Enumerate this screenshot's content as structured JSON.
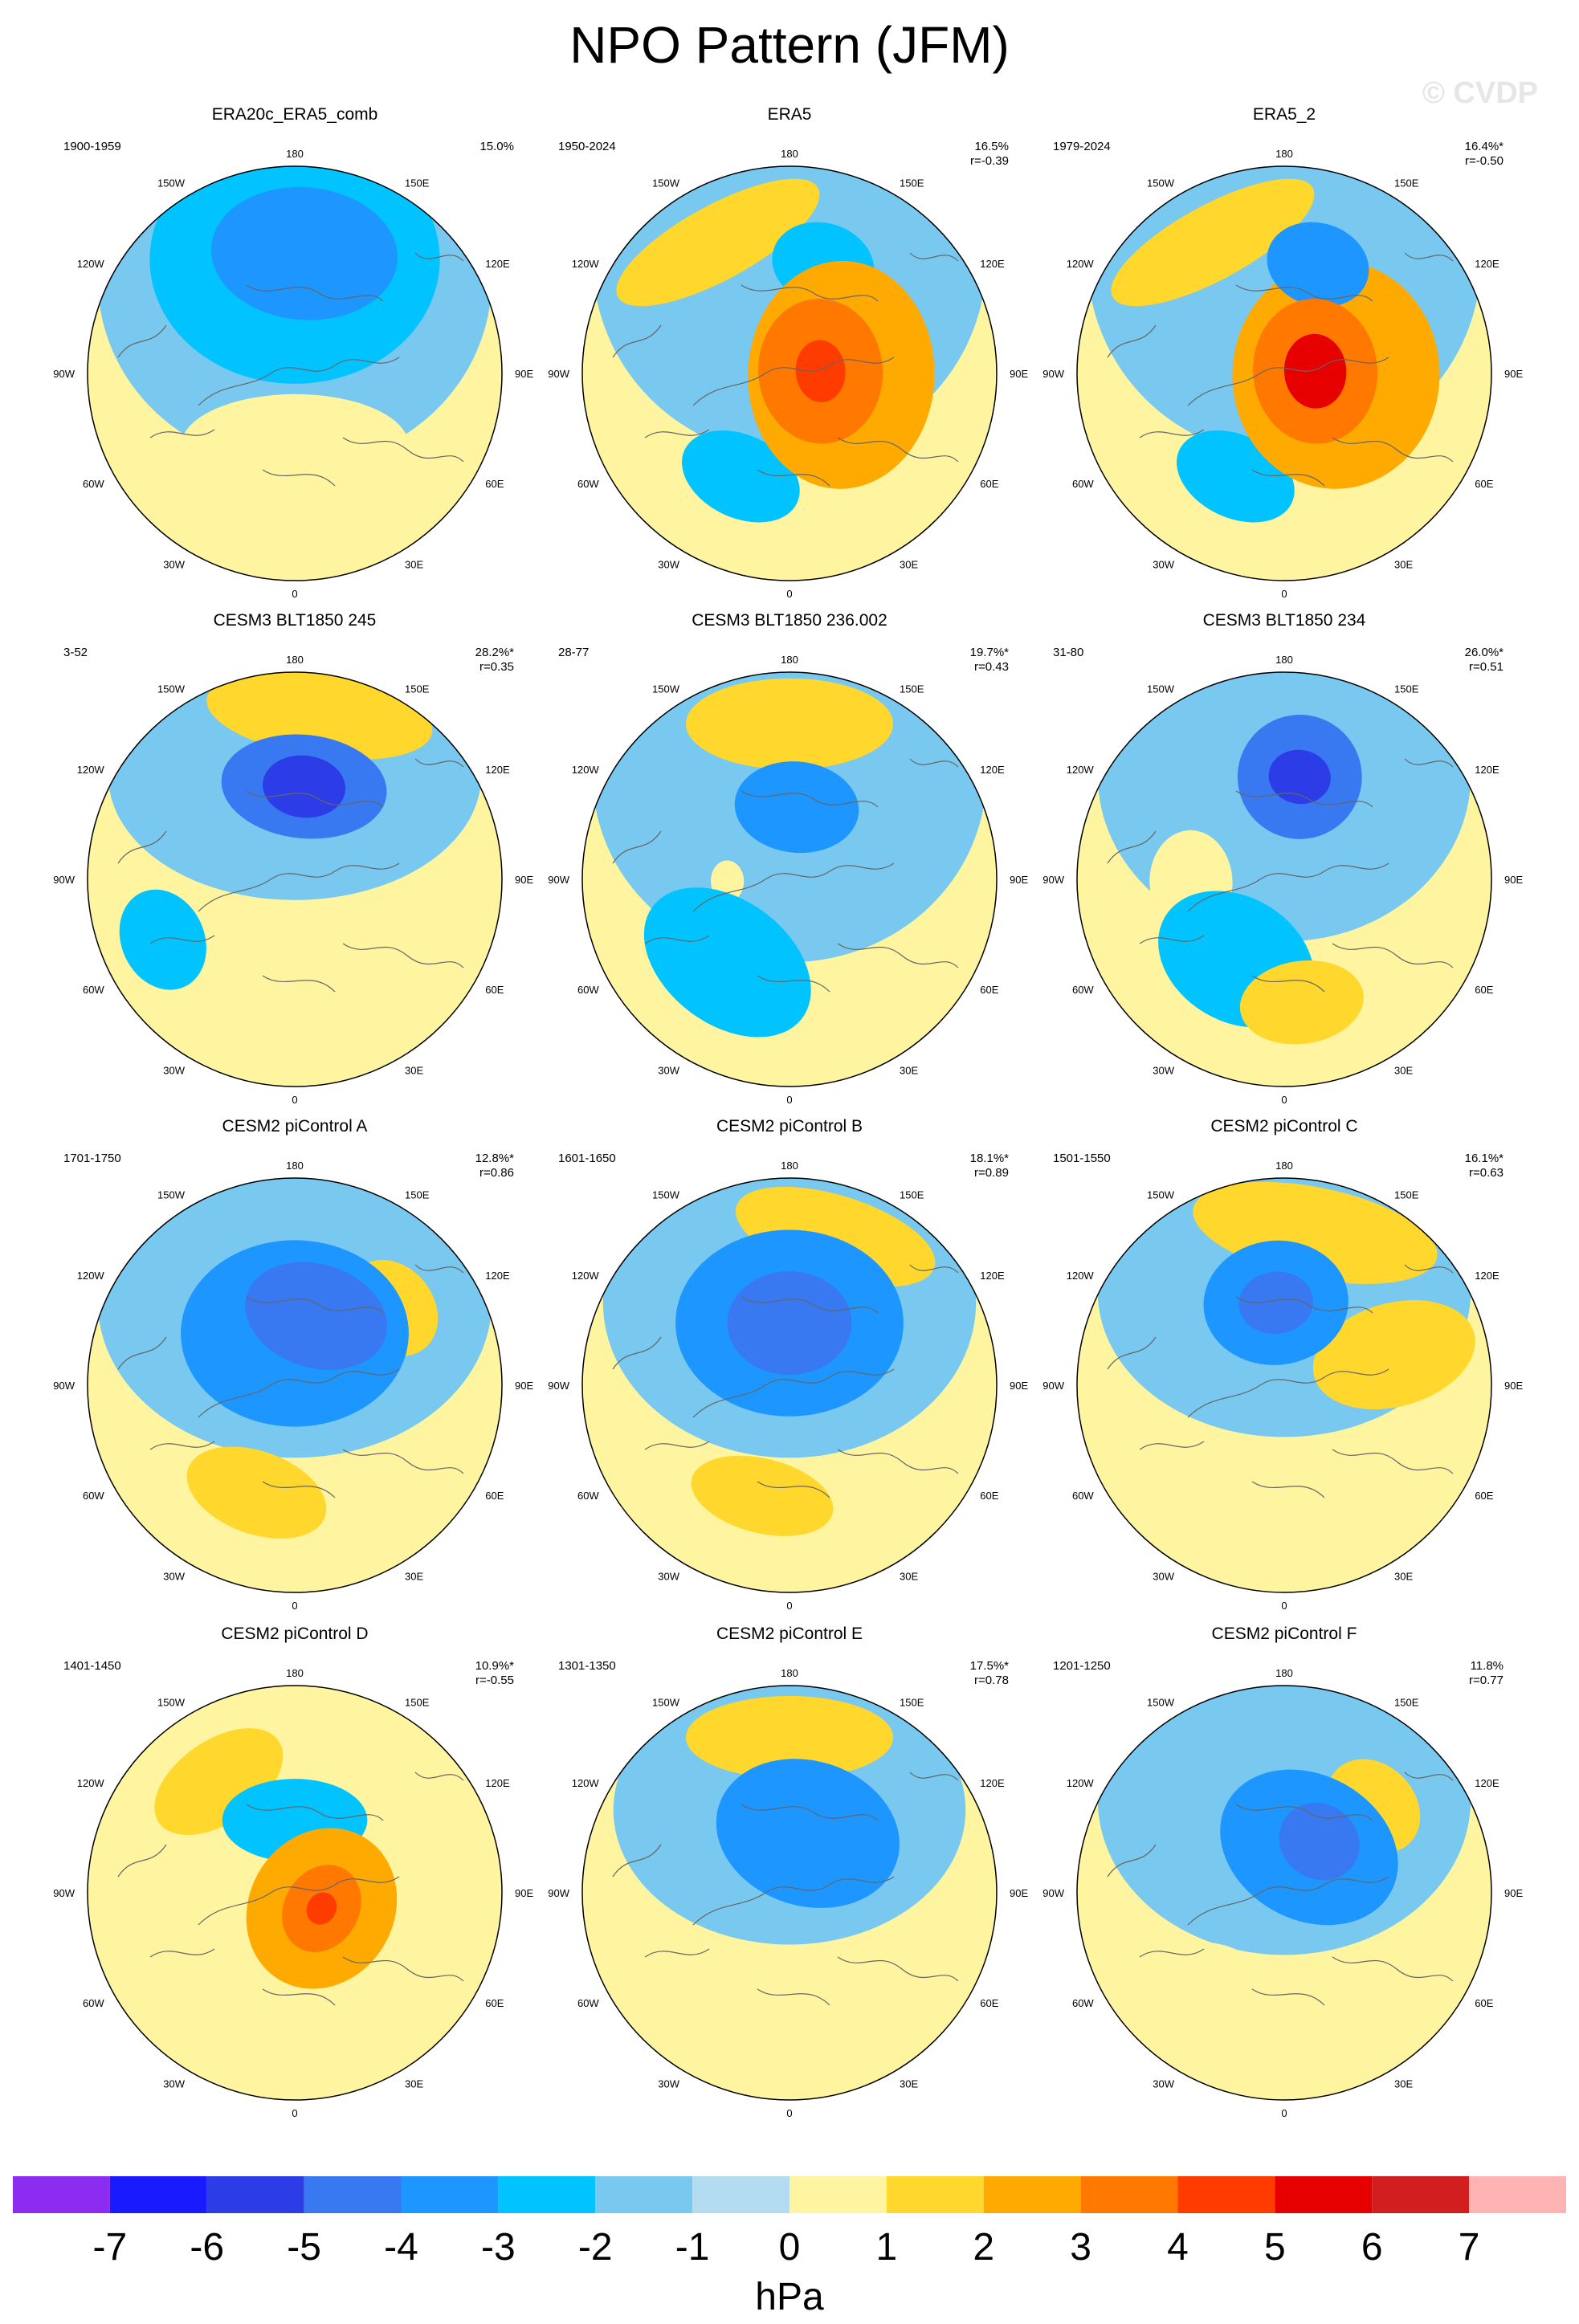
{
  "title": "NPO Pattern (JFM)",
  "watermark": "© CVDP",
  "lon_labels": [
    "180",
    "150E",
    "120E",
    "90E",
    "60E",
    "30E",
    "0",
    "30W",
    "60W",
    "90W",
    "120W",
    "150W"
  ],
  "colorbar": {
    "labels": [
      "-7",
      "-6",
      "-5",
      "-4",
      "-3",
      "-2",
      "-1",
      "0",
      "1",
      "2",
      "3",
      "4",
      "5",
      "6",
      "7"
    ],
    "colors": [
      "#8c2cf0",
      "#1a1aff",
      "#2c3ce6",
      "#3878f0",
      "#1e96ff",
      "#00c3ff",
      "#78c8f0",
      "#b4dcf0",
      "#fff5a0",
      "#ffd72d",
      "#ffaa00",
      "#ff7800",
      "#ff3c00",
      "#e60000",
      "#d21e1e",
      "#ffb4b4"
    ],
    "unit": "hPa"
  },
  "panels": [
    {
      "title": "ERA20c_ERA5_comb",
      "years": "1900-1959",
      "pct": "15.0%",
      "r": "",
      "blobs": [
        [
          "n",
          0.08,
          0.58,
          0.45,
          0.32,
          -3
        ],
        [
          "n",
          0.0,
          0.55,
          0.7,
          0.6,
          -2
        ],
        [
          "n",
          0.0,
          0.45,
          0.95,
          0.9,
          -1
        ],
        [
          "p",
          2.6,
          0.55,
          0.3,
          0.15,
          1
        ],
        [
          "p",
          -0.1,
          0.45,
          0.35,
          0.14,
          1
        ],
        [
          "p",
          3.14,
          0.35,
          0.55,
          0.25,
          1
        ]
      ]
    },
    {
      "title": "ERA5",
      "years": "1950-2024",
      "pct": "16.5%",
      "r": "r=-0.39",
      "blobs": [
        [
          "p",
          1.6,
          0.25,
          0.55,
          0.45,
          3
        ],
        [
          "p",
          1.5,
          0.15,
          0.35,
          0.3,
          4
        ],
        [
          "p",
          1.5,
          0.15,
          0.15,
          0.12,
          5
        ],
        [
          "p",
          -0.5,
          0.72,
          0.55,
          0.18,
          2
        ],
        [
          "n",
          0.3,
          0.55,
          0.25,
          0.2,
          -2
        ],
        [
          "n",
          -2.7,
          0.55,
          0.3,
          0.2,
          -2
        ],
        [
          "n",
          0,
          0.55,
          0.95,
          0.95,
          -1
        ]
      ]
    },
    {
      "title": "ERA5_2",
      "years": "1979-2024",
      "pct": "16.4%*",
      "r": "r=-0.50",
      "blobs": [
        [
          "p",
          1.6,
          0.25,
          0.55,
          0.5,
          3
        ],
        [
          "p",
          1.5,
          0.15,
          0.35,
          0.3,
          4
        ],
        [
          "p",
          1.5,
          0.15,
          0.18,
          0.15,
          6
        ],
        [
          "p",
          -0.5,
          0.72,
          0.55,
          0.18,
          2
        ],
        [
          "n",
          0.3,
          0.55,
          0.25,
          0.2,
          -3
        ],
        [
          "n",
          -2.7,
          0.55,
          0.3,
          0.2,
          -2
        ],
        [
          "n",
          0,
          0.55,
          0.95,
          0.95,
          -1
        ]
      ]
    },
    {
      "title": "CESM3 BLT1850 245",
      "years": "3-52",
      "pct": "28.2%*",
      "r": "r=0.35",
      "blobs": [
        [
          "p",
          0.15,
          0.8,
          0.55,
          0.2,
          2
        ],
        [
          "n",
          0.1,
          0.45,
          0.4,
          0.25,
          -4
        ],
        [
          "n",
          0.1,
          0.45,
          0.2,
          0.15,
          -5
        ],
        [
          "n",
          -2.0,
          0.7,
          0.25,
          0.2,
          -2
        ],
        [
          "n",
          0,
          0.5,
          0.9,
          0.6,
          -1
        ],
        [
          "p",
          2.5,
          0.5,
          0.3,
          0.3,
          1
        ]
      ]
    },
    {
      "title": "CESM3 BLT1850 236.002",
      "years": "28-77",
      "pct": "19.7%*",
      "r": "r=0.43",
      "blobs": [
        [
          "p",
          0.0,
          0.75,
          0.5,
          0.22,
          2
        ],
        [
          "n",
          0.1,
          0.35,
          0.3,
          0.22,
          -3
        ],
        [
          "n",
          -2.5,
          0.5,
          0.45,
          0.3,
          -2
        ],
        [
          "n",
          0,
          0.5,
          0.95,
          0.9,
          -1
        ],
        [
          "p",
          -1.6,
          0.3,
          0.1,
          0.08,
          1
        ]
      ]
    },
    {
      "title": "CESM3 BLT1850 234",
      "years": "31-80",
      "pct": "26.0%*",
      "r": "r=0.51",
      "blobs": [
        [
          "n",
          0.15,
          0.5,
          0.3,
          0.3,
          -4
        ],
        [
          "n",
          0.15,
          0.5,
          0.15,
          0.13,
          -5
        ],
        [
          "n",
          -2.6,
          0.45,
          0.4,
          0.3,
          -2
        ],
        [
          "n",
          0,
          0.5,
          0.9,
          0.8,
          -1
        ],
        [
          "p",
          -1.6,
          0.45,
          0.25,
          0.2,
          1
        ],
        [
          "p",
          3.0,
          0.6,
          0.3,
          0.2,
          2
        ]
      ]
    },
    {
      "title": "CESM2 piControl A",
      "years": "1701-1750",
      "pct": "12.8%*",
      "r": "r=0.86",
      "blobs": [
        [
          "n",
          0.0,
          0.25,
          0.55,
          0.45,
          -3
        ],
        [
          "n",
          0.3,
          0.35,
          0.35,
          0.25,
          -4
        ],
        [
          "n",
          0,
          0.4,
          0.95,
          0.75,
          -1
        ],
        [
          "p",
          0.9,
          0.6,
          0.25,
          0.2,
          2
        ],
        [
          "p",
          -2.8,
          0.55,
          0.35,
          0.2,
          2
        ]
      ]
    },
    {
      "title": "CESM2 piControl B",
      "years": "1601-1650",
      "pct": "18.1%*",
      "r": "r=0.89",
      "blobs": [
        [
          "n",
          0.0,
          0.3,
          0.55,
          0.45,
          -3
        ],
        [
          "n",
          0.0,
          0.3,
          0.3,
          0.25,
          -4
        ],
        [
          "n",
          0,
          0.4,
          0.9,
          0.75,
          -1
        ],
        [
          "p",
          0.3,
          0.75,
          0.5,
          0.2,
          2
        ],
        [
          "p",
          -2.9,
          0.55,
          0.35,
          0.18,
          2
        ]
      ]
    },
    {
      "title": "CESM2 piControl C",
      "years": "1501-1550",
      "pct": "16.1%*",
      "r": "r=0.63",
      "blobs": [
        [
          "p",
          0.2,
          0.75,
          0.6,
          0.22,
          2
        ],
        [
          "n",
          -0.1,
          0.4,
          0.35,
          0.3,
          -3
        ],
        [
          "n",
          -0.1,
          0.4,
          0.18,
          0.15,
          -4
        ],
        [
          "n",
          0,
          0.45,
          0.9,
          0.7,
          -1
        ],
        [
          "p",
          1.3,
          0.55,
          0.25,
          0.4,
          2
        ],
        [
          "p",
          -2.8,
          0.55,
          0.3,
          0.18,
          1
        ]
      ]
    },
    {
      "title": "CESM2 piControl D",
      "years": "1401-1450",
      "pct": "10.9%*",
      "r": "r=-0.55",
      "blobs": [
        [
          "p",
          2.1,
          0.15,
          0.4,
          0.35,
          3
        ],
        [
          "p",
          2.1,
          0.15,
          0.22,
          0.18,
          4
        ],
        [
          "p",
          2.1,
          0.15,
          0.08,
          0.07,
          5
        ],
        [
          "p",
          -0.6,
          0.65,
          0.35,
          0.2,
          2
        ],
        [
          "n",
          0.0,
          0.35,
          0.35,
          0.2,
          -2
        ],
        [
          "n",
          0,
          0.6,
          0.95,
          0.9,
          -1
        ],
        [
          "p",
          0,
          0.55,
          0.95,
          0.9,
          1
        ]
      ]
    },
    {
      "title": "CESM2 piControl E",
      "years": "1301-1350",
      "pct": "17.5%*",
      "r": "r=0.78",
      "blobs": [
        [
          "p",
          0.0,
          0.75,
          0.5,
          0.2,
          2
        ],
        [
          "n",
          0.3,
          0.3,
          0.45,
          0.35,
          -3
        ],
        [
          "n",
          0,
          0.4,
          0.85,
          0.65,
          -1
        ],
        [
          "p",
          -2.8,
          0.5,
          0.3,
          0.2,
          1
        ]
      ]
    },
    {
      "title": "CESM2 piControl F",
      "years": "1201-1250",
      "pct": "11.8%",
      "r": "r=0.77",
      "blobs": [
        [
          "n",
          0.5,
          0.25,
          0.45,
          0.35,
          -3
        ],
        [
          "n",
          0.6,
          0.3,
          0.2,
          0.18,
          -4
        ],
        [
          "n",
          0,
          0.45,
          0.9,
          0.75,
          -1
        ],
        [
          "p",
          0.8,
          0.6,
          0.25,
          0.2,
          2
        ],
        [
          "p",
          -2.6,
          0.55,
          0.3,
          0.2,
          1
        ]
      ]
    }
  ]
}
